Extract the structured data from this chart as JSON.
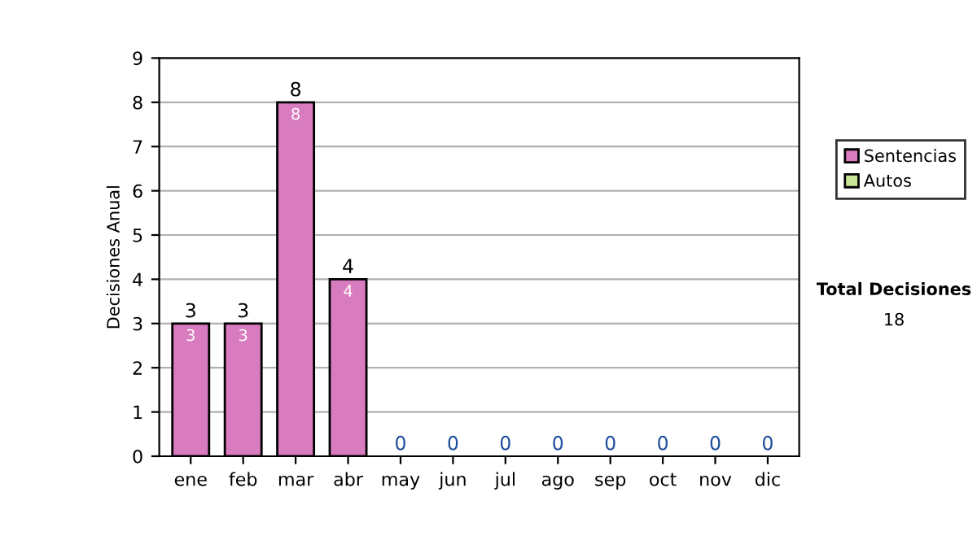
{
  "chart_data": {
    "type": "bar",
    "stacked": true,
    "ylabel": "Decisiones Anual",
    "categories": [
      "ene",
      "feb",
      "mar",
      "abr",
      "may",
      "jun",
      "jul",
      "ago",
      "sep",
      "oct",
      "nov",
      "dic"
    ],
    "series": [
      {
        "name": "Sentencias",
        "color": "#d97bbf",
        "values": [
          3,
          3,
          8,
          4,
          0,
          0,
          0,
          0,
          0,
          0,
          0,
          0
        ],
        "value_labels": [
          "3",
          "3",
          "8",
          "4",
          null,
          null,
          null,
          null,
          null,
          null,
          null,
          null
        ]
      },
      {
        "name": "Autos",
        "color": "#cce699",
        "values": [
          0,
          0,
          0,
          0,
          0,
          0,
          0,
          0,
          0,
          0,
          0,
          0
        ]
      }
    ],
    "totals": [
      "3",
      "3",
      "8",
      "4",
      "0",
      "0",
      "0",
      "0",
      "0",
      "0",
      "0",
      "0"
    ],
    "ylim": [
      0,
      9
    ],
    "yticks": [
      0,
      1,
      2,
      3,
      4,
      5,
      6,
      7,
      8,
      9
    ],
    "grid": "y",
    "legend": "right",
    "annotations": [
      "Total Decisiones",
      "18"
    ]
  }
}
